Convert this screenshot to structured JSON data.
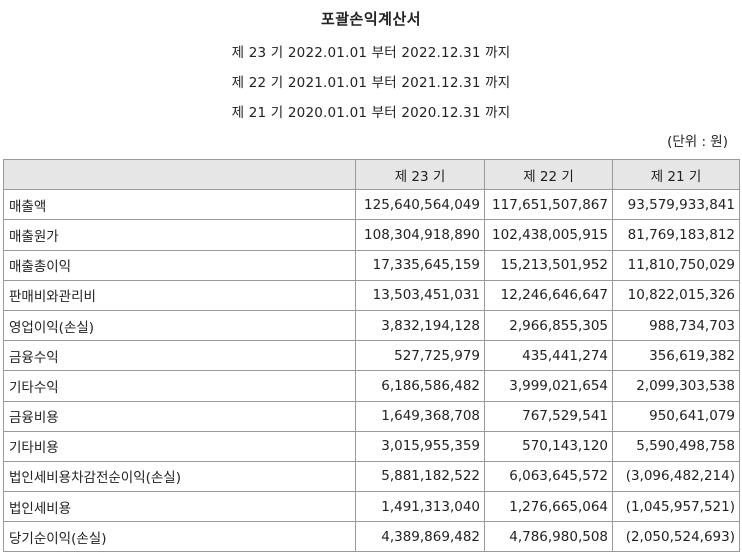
{
  "document": {
    "title": "포괄손익계산서",
    "periods": [
      "제 23 기 2022.01.01 부터 2022.12.31 까지",
      "제 22 기 2021.01.01 부터 2021.12.31 까지",
      "제 21 기 2020.01.01 부터 2020.12.31 까지"
    ],
    "unit": "(단위 : 원)"
  },
  "table": {
    "columns": [
      "",
      "제 23 기",
      "제 22 기",
      "제 21 기"
    ],
    "rows": [
      {
        "label": "매출액",
        "values": [
          "125,640,564,049",
          "117,651,507,867",
          "93,579,933,841"
        ]
      },
      {
        "label": "매출원가",
        "values": [
          "108,304,918,890",
          "102,438,005,915",
          "81,769,183,812"
        ]
      },
      {
        "label": "매출총이익",
        "values": [
          "17,335,645,159",
          "15,213,501,952",
          "11,810,750,029"
        ]
      },
      {
        "label": "판매비와관리비",
        "values": [
          "13,503,451,031",
          "12,246,646,647",
          "10,822,015,326"
        ]
      },
      {
        "label": "영업이익(손실)",
        "values": [
          "3,832,194,128",
          "2,966,855,305",
          "988,734,703"
        ]
      },
      {
        "label": "금융수익",
        "values": [
          "527,725,979",
          "435,441,274",
          "356,619,382"
        ]
      },
      {
        "label": "기타수익",
        "values": [
          "6,186,586,482",
          "3,999,021,654",
          "2,099,303,538"
        ]
      },
      {
        "label": "금융비용",
        "values": [
          "1,649,368,708",
          "767,529,541",
          "950,641,079"
        ]
      },
      {
        "label": "기타비용",
        "values": [
          "3,015,955,359",
          "570,143,120",
          "5,590,498,758"
        ]
      },
      {
        "label": "법인세비용차감전순이익(손실)",
        "values": [
          "5,881,182,522",
          "6,063,645,572",
          "(3,096,482,214)"
        ]
      },
      {
        "label": "법인세비용",
        "values": [
          "1,491,313,040",
          "1,276,665,064",
          "(1,045,957,521)"
        ]
      },
      {
        "label": "당기순이익(손실)",
        "values": [
          "4,389,869,482",
          "4,786,980,508",
          "(2,050,524,693)"
        ]
      }
    ]
  }
}
